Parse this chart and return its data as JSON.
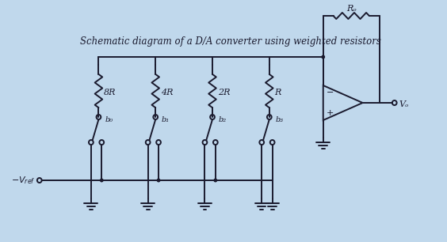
{
  "background_color": "#c0d8ec",
  "title": "Schematic diagram of a D/A converter using weighted resistors",
  "title_fontsize": 8.5,
  "line_color": "#1a1a2e",
  "resistor_labels": [
    "8R",
    "4R",
    "2R",
    "R"
  ],
  "switch_labels": [
    "b₀",
    "b₁",
    "b₂",
    "b₃"
  ],
  "Ro_label": "Rₒ",
  "Vo_label": "Vₒ",
  "Vref_label": "-Vₑₑₒ",
  "opamp_minus": "−",
  "opamp_plus": "+",
  "lw": 1.4
}
